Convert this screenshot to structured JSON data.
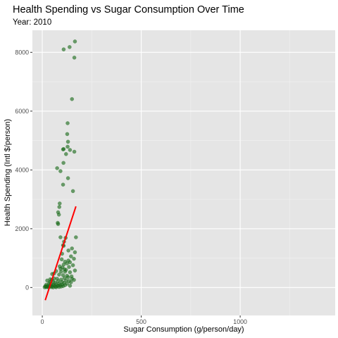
{
  "chart_data": {
    "type": "scatter",
    "title": "Health Spending vs Sugar Consumption Over Time",
    "subtitle": "Year: 2010",
    "xlabel": "Sugar Consumption (g/person/day)",
    "ylabel": "Health Spending (Intl $/person)",
    "xlim": [
      -50,
      1480
    ],
    "ylim": [
      -950,
      8750
    ],
    "x_ticks": [
      0,
      500,
      1000
    ],
    "x_tick_labels": [
      "0",
      "500",
      "1000"
    ],
    "y_ticks": [
      0,
      2000,
      4000,
      6000,
      8000
    ],
    "y_tick_labels": [
      "0",
      "2000",
      "4000",
      "6000",
      "8000"
    ],
    "grid": true,
    "legend": "none",
    "point_color": "#1a6b1a",
    "trend_color": "#ff0000",
    "trend_line": {
      "x": [
        15,
        170
      ],
      "y": [
        -430,
        2760
      ]
    },
    "points": [
      {
        "x": 108,
        "y": 8100
      },
      {
        "x": 138,
        "y": 8180
      },
      {
        "x": 165,
        "y": 8370
      },
      {
        "x": 162,
        "y": 7820
      },
      {
        "x": 150,
        "y": 6410
      },
      {
        "x": 128,
        "y": 5590
      },
      {
        "x": 126,
        "y": 5220
      },
      {
        "x": 130,
        "y": 4960
      },
      {
        "x": 128,
        "y": 4790
      },
      {
        "x": 140,
        "y": 4680
      },
      {
        "x": 162,
        "y": 4620
      },
      {
        "x": 105,
        "y": 4700
      },
      {
        "x": 108,
        "y": 4710
      },
      {
        "x": 120,
        "y": 4540
      },
      {
        "x": 107,
        "y": 4240
      },
      {
        "x": 75,
        "y": 4060
      },
      {
        "x": 92,
        "y": 3960
      },
      {
        "x": 130,
        "y": 3720
      },
      {
        "x": 105,
        "y": 3500
      },
      {
        "x": 155,
        "y": 3280
      },
      {
        "x": 88,
        "y": 2860
      },
      {
        "x": 86,
        "y": 2740
      },
      {
        "x": 80,
        "y": 2560
      },
      {
        "x": 84,
        "y": 2480
      },
      {
        "x": 78,
        "y": 2200
      },
      {
        "x": 80,
        "y": 2160
      },
      {
        "x": 92,
        "y": 1710
      },
      {
        "x": 170,
        "y": 1710
      },
      {
        "x": 118,
        "y": 1690
      },
      {
        "x": 110,
        "y": 1560
      },
      {
        "x": 105,
        "y": 1440
      },
      {
        "x": 108,
        "y": 1420
      },
      {
        "x": 150,
        "y": 1330
      },
      {
        "x": 132,
        "y": 1260
      },
      {
        "x": 165,
        "y": 1200
      },
      {
        "x": 100,
        "y": 1150
      },
      {
        "x": 145,
        "y": 1060
      },
      {
        "x": 160,
        "y": 980
      },
      {
        "x": 98,
        "y": 960
      },
      {
        "x": 132,
        "y": 920
      },
      {
        "x": 115,
        "y": 880
      },
      {
        "x": 140,
        "y": 860
      },
      {
        "x": 125,
        "y": 820
      },
      {
        "x": 108,
        "y": 780
      },
      {
        "x": 155,
        "y": 760
      },
      {
        "x": 88,
        "y": 720
      },
      {
        "x": 135,
        "y": 700
      },
      {
        "x": 102,
        "y": 680
      },
      {
        "x": 92,
        "y": 640
      },
      {
        "x": 112,
        "y": 620
      },
      {
        "x": 120,
        "y": 600
      },
      {
        "x": 165,
        "y": 580
      },
      {
        "x": 70,
        "y": 560
      },
      {
        "x": 95,
        "y": 540
      },
      {
        "x": 140,
        "y": 520
      },
      {
        "x": 60,
        "y": 480
      },
      {
        "x": 50,
        "y": 460
      },
      {
        "x": 85,
        "y": 440
      },
      {
        "x": 105,
        "y": 420
      },
      {
        "x": 125,
        "y": 400
      },
      {
        "x": 148,
        "y": 380
      },
      {
        "x": 130,
        "y": 350
      },
      {
        "x": 112,
        "y": 320
      },
      {
        "x": 75,
        "y": 300
      },
      {
        "x": 150,
        "y": 300
      },
      {
        "x": 40,
        "y": 280
      },
      {
        "x": 95,
        "y": 270
      },
      {
        "x": 160,
        "y": 260
      },
      {
        "x": 25,
        "y": 240
      },
      {
        "x": 120,
        "y": 240
      },
      {
        "x": 80,
        "y": 220
      },
      {
        "x": 135,
        "y": 220
      },
      {
        "x": 55,
        "y": 200
      },
      {
        "x": 100,
        "y": 190
      },
      {
        "x": 145,
        "y": 180
      },
      {
        "x": 65,
        "y": 170
      },
      {
        "x": 110,
        "y": 160
      },
      {
        "x": 35,
        "y": 150
      },
      {
        "x": 85,
        "y": 140
      },
      {
        "x": 125,
        "y": 130
      },
      {
        "x": 45,
        "y": 120
      },
      {
        "x": 70,
        "y": 110
      },
      {
        "x": 100,
        "y": 100
      },
      {
        "x": 20,
        "y": 95
      },
      {
        "x": 55,
        "y": 90
      },
      {
        "x": 90,
        "y": 85
      },
      {
        "x": 115,
        "y": 80
      },
      {
        "x": 30,
        "y": 75
      },
      {
        "x": 60,
        "y": 70
      },
      {
        "x": 80,
        "y": 65
      },
      {
        "x": 140,
        "y": 60
      },
      {
        "x": 40,
        "y": 55
      },
      {
        "x": 75,
        "y": 50
      },
      {
        "x": 105,
        "y": 50
      },
      {
        "x": 15,
        "y": 45
      },
      {
        "x": 50,
        "y": 40
      },
      {
        "x": 95,
        "y": 35
      },
      {
        "x": 25,
        "y": 30
      },
      {
        "x": 65,
        "y": 30
      },
      {
        "x": 35,
        "y": 25
      },
      {
        "x": 85,
        "y": 20
      },
      {
        "x": 20,
        "y": 15
      },
      {
        "x": 45,
        "y": 15
      },
      {
        "x": 70,
        "y": 10
      },
      {
        "x": 12,
        "y": 10
      },
      {
        "x": 30,
        "y": 10
      },
      {
        "x": 55,
        "y": 5
      },
      {
        "x": 18,
        "y": 35
      },
      {
        "x": 40,
        "y": 190
      },
      {
        "x": 60,
        "y": 310
      },
      {
        "x": 48,
        "y": 260
      },
      {
        "x": 115,
        "y": 540
      }
    ]
  }
}
